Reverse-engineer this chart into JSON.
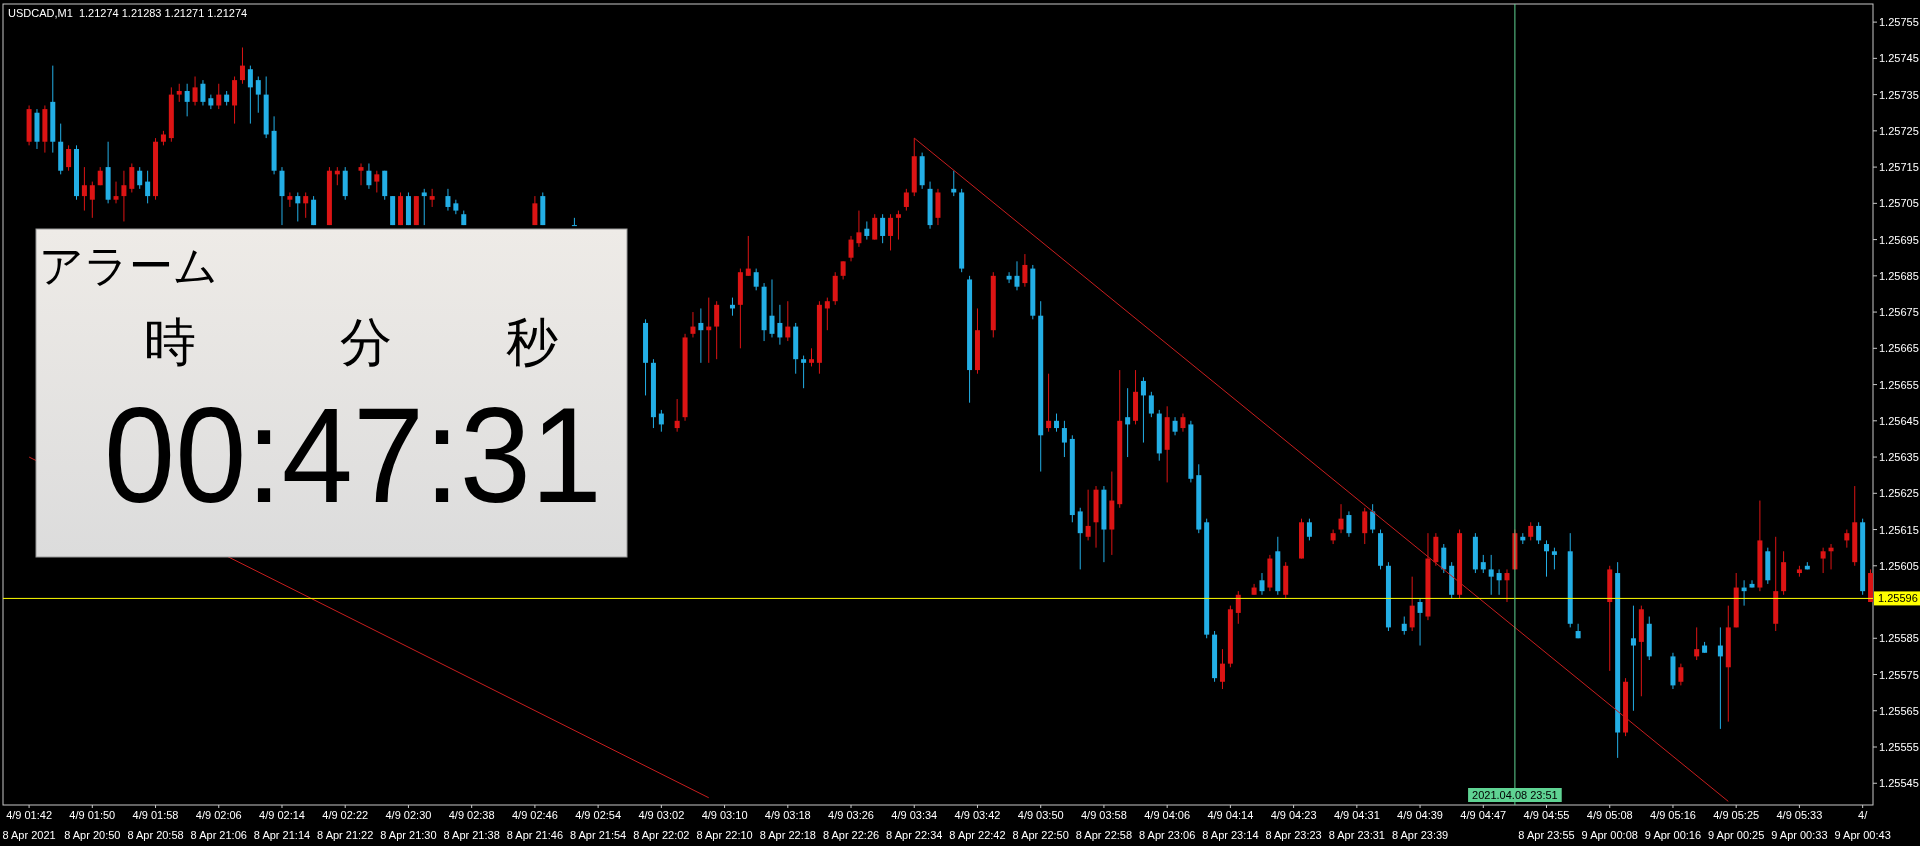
{
  "chart_data": [
    {
      "type": "candlestick",
      "title": "USDCAD,M1  1.21274 1.21283 1.21271 1.21274",
      "categories": [
        "4/9 01:42\n8 Apr 2021",
        null,
        null,
        null,
        null,
        null,
        null,
        null,
        "4/9 01:50\n8 Apr 20:50",
        null,
        null,
        null,
        null,
        null,
        null,
        null,
        "4/9 01:58\n8 Apr 20:58",
        null,
        null,
        null,
        null,
        null,
        null,
        null,
        "4/9 02:06\n8 Apr 21:06",
        null,
        null,
        null,
        null,
        null,
        null,
        null,
        "4/9 02:14\n8 Apr 21:14",
        null,
        null,
        null,
        null,
        null,
        null,
        null,
        "4/9 02:22\n8 Apr 21:22",
        null,
        null,
        null,
        null,
        null,
        null,
        null,
        "4/9 02:30\n8 Apr 21:30",
        null,
        null,
        null,
        null,
        null,
        null,
        null,
        "4/9 02:38\n8 Apr 21:38",
        null,
        null,
        null,
        null,
        null,
        null,
        null,
        "4/9 02:46\n8 Apr 21:46",
        null,
        null,
        null,
        null,
        null,
        null,
        null,
        "4/9 02:54\n8 Apr 21:54",
        null,
        null,
        null,
        null,
        null,
        null,
        null,
        "4/9 03:02\n8 Apr 22:02",
        null,
        null,
        null,
        null,
        null,
        null,
        null,
        "4/9 03:10\n8 Apr 22:10",
        null,
        null,
        null,
        null,
        null,
        null,
        null,
        "4/9 03:18\n8 Apr 22:18",
        null,
        null,
        null,
        null,
        null,
        null,
        null,
        "4/9 03:26\n8 Apr 22:26",
        null,
        null,
        null,
        null,
        null,
        null,
        null,
        "4/9 03:34\n8 Apr 22:34",
        null,
        null,
        null,
        null,
        null,
        null,
        null,
        "4/9 03:42\n8 Apr 22:42",
        null,
        null,
        null,
        null,
        null,
        null,
        null,
        "4/9 03:50\n8 Apr 22:50",
        null,
        null,
        null,
        null,
        null,
        null,
        null,
        "4/9 03:58\n8 Apr 22:58",
        null,
        null,
        null,
        null,
        null,
        null,
        null,
        "4/9 04:06\n8 Apr 23:06",
        null,
        null,
        null,
        null,
        null,
        null,
        null,
        "4/9 04:14\n8 Apr 23:14",
        null,
        null,
        null,
        null,
        null,
        null,
        null,
        "4/9 04:23\n8 Apr 23:23",
        null,
        null,
        null,
        null,
        null,
        null,
        null,
        "4/9 04:31\n8 Apr 23:31",
        null,
        null,
        null,
        null,
        null,
        null,
        null,
        "4/9 04:39\n8 Apr 23:39",
        null,
        null,
        null,
        null,
        null,
        null,
        null,
        "4/9 04:47",
        null,
        null,
        null,
        "2021.04.08 23:51",
        null,
        null,
        null,
        "4/9 04:55\n8 Apr 23:55",
        null,
        null,
        null,
        null,
        null,
        null,
        null,
        "4/9 05:08\n9 Apr 00:08",
        null,
        null,
        null,
        null,
        null,
        null,
        null,
        "4/9 05:16\n9 Apr 00:16",
        null,
        null,
        null,
        null,
        null,
        null,
        null,
        "4/9 05:25\n9 Apr 00:25",
        null,
        null,
        null,
        null,
        null,
        null,
        null,
        "4/9 05:33\n9 Apr 00:33",
        null,
        null,
        null,
        null,
        null,
        null,
        null,
        "4/\n9 Apr 00:43",
        null
      ],
      "ohlc": [
        [
          1.25722,
          1.25732,
          1.25721,
          1.25731
        ],
        [
          1.2573,
          1.25731,
          1.2572,
          1.25722
        ],
        [
          1.25722,
          1.25732,
          1.25719,
          1.25731
        ],
        [
          1.25733,
          1.25743,
          1.25719,
          1.25722
        ],
        [
          1.25722,
          1.25727,
          1.25713,
          1.25714
        ],
        [
          1.25715,
          1.25721,
          1.25714,
          1.2572
        ],
        [
          1.2572,
          1.25721,
          1.25706,
          1.25707
        ],
        [
          1.25707,
          1.25715,
          1.25703,
          1.2571
        ],
        [
          1.25706,
          1.25711,
          1.25701,
          1.2571
        ],
        [
          1.2571,
          1.25715,
          1.2571,
          1.25714
        ],
        [
          1.25715,
          1.25722,
          1.25705,
          1.25706
        ],
        [
          1.25706,
          1.25711,
          1.25705,
          1.25707
        ],
        [
          1.25707,
          1.25714,
          1.257,
          1.2571
        ],
        [
          1.25709,
          1.25716,
          1.25708,
          1.25715
        ],
        [
          1.25714,
          1.25715,
          1.25709,
          1.2571
        ],
        [
          1.25711,
          1.25714,
          1.25705,
          1.25707
        ],
        [
          1.25707,
          1.25723,
          1.25706,
          1.25722
        ],
        [
          1.25722,
          1.25725,
          1.25721,
          1.25724
        ],
        [
          1.25723,
          1.25737,
          1.25722,
          1.25735
        ],
        [
          1.25735,
          1.25738,
          1.25733,
          1.25736
        ],
        [
          1.25736,
          1.25738,
          1.25729,
          1.25733
        ],
        [
          1.25733,
          1.2574,
          1.25732,
          1.25737
        ],
        [
          1.25738,
          1.25739,
          1.25732,
          1.25733
        ],
        [
          1.25734,
          1.25735,
          1.25731,
          1.25732
        ],
        [
          1.25732,
          1.25738,
          1.25731,
          1.25735
        ],
        [
          1.25735,
          1.25736,
          1.25732,
          1.25733
        ],
        [
          1.25732,
          1.2574,
          1.25727,
          1.25739
        ],
        [
          1.25739,
          1.25748,
          1.25738,
          1.25743
        ],
        [
          1.25742,
          1.25743,
          1.25727,
          1.25737
        ],
        [
          1.25739,
          1.2574,
          1.2573,
          1.25735
        ],
        [
          1.25735,
          1.2574,
          1.25723,
          1.25724
        ],
        [
          1.25725,
          1.25729,
          1.25713,
          1.25714
        ],
        [
          1.25714,
          1.25715,
          1.25699,
          1.25707
        ],
        [
          1.25706,
          1.25708,
          1.25704,
          1.25707
        ],
        [
          1.25707,
          1.25708,
          1.257,
          1.25705
        ],
        [
          1.25705,
          1.25708,
          1.25701,
          1.25707
        ],
        [
          1.25706,
          1.25707,
          1.25699,
          1.25699
        ],
        null,
        [
          1.25699,
          1.25715,
          1.25699,
          1.25714
        ],
        [
          1.25713,
          1.25715,
          1.2571,
          1.25714
        ],
        [
          1.25714,
          1.25715,
          1.25706,
          1.25707
        ],
        null,
        [
          1.25714,
          1.25716,
          1.2571,
          1.25715
        ],
        [
          1.25714,
          1.25716,
          1.25709,
          1.2571
        ],
        [
          1.25711,
          1.25714,
          1.25708,
          1.25713
        ],
        [
          1.25714,
          1.25714,
          1.25706,
          1.25707
        ],
        [
          1.25707,
          1.25707,
          1.25699,
          1.25699
        ],
        [
          1.25699,
          1.25708,
          1.25699,
          1.25707
        ],
        [
          1.25707,
          1.25708,
          1.25699,
          1.25699
        ],
        [
          1.25699,
          1.25707,
          1.25699,
          1.25707
        ],
        [
          1.25708,
          1.25709,
          1.25699,
          1.25707
        ],
        [
          1.25706,
          1.25709,
          1.25704,
          1.25707
        ],
        null,
        [
          1.25707,
          1.25709,
          1.25703,
          1.25704
        ],
        [
          1.25705,
          1.25706,
          1.25702,
          1.25703
        ],
        [
          1.25702,
          1.25703,
          1.25699,
          1.25699
        ],
        null,
        null,
        null,
        null,
        null,
        null,
        null,
        null,
        [
          1.25699,
          1.25707,
          1.25699,
          1.25705
        ],
        [
          1.25707,
          1.25708,
          1.25699,
          1.25699
        ],
        null,
        null,
        null,
        [
          1.25699,
          1.25701,
          1.25699,
          1.25699
        ],
        null,
        null,
        null,
        null,
        null,
        null,
        null,
        null,
        [
          1.25672,
          1.25673,
          1.25652,
          1.25661
        ],
        [
          1.25661,
          1.25662,
          1.25643,
          1.25646
        ],
        [
          1.25647,
          1.25648,
          1.25642,
          1.25644
        ],
        null,
        [
          1.25643,
          1.25651,
          1.25642,
          1.25645
        ],
        [
          1.25646,
          1.25669,
          1.25645,
          1.25668
        ],
        [
          1.25669,
          1.25675,
          1.25668,
          1.25671
        ],
        [
          1.25672,
          1.25676,
          1.25661,
          1.2567
        ],
        [
          1.2567,
          1.25679,
          1.25661,
          1.25671
        ],
        [
          1.25671,
          1.25678,
          1.25662,
          1.25677
        ],
        null,
        [
          1.25677,
          1.25679,
          1.25674,
          1.25676
        ],
        [
          1.25677,
          1.25687,
          1.25665,
          1.25686
        ],
        [
          1.25685,
          1.25696,
          1.25685,
          1.25687
        ],
        [
          1.25686,
          1.25687,
          1.25681,
          1.25682
        ],
        [
          1.25682,
          1.25683,
          1.25667,
          1.2567
        ],
        [
          1.25674,
          1.25684,
          1.25668,
          1.25669
        ],
        [
          1.25672,
          1.25677,
          1.25666,
          1.25668
        ],
        [
          1.25668,
          1.25678,
          1.25667,
          1.25671
        ],
        [
          1.25671,
          1.25672,
          1.25658,
          1.25662
        ],
        [
          1.25662,
          1.25663,
          1.25654,
          1.25661
        ],
        [
          1.25661,
          1.25665,
          1.2566,
          1.25662
        ],
        [
          1.25661,
          1.25678,
          1.25658,
          1.25677
        ],
        [
          1.25676,
          1.25679,
          1.2567,
          1.25678
        ],
        [
          1.25678,
          1.25686,
          1.25677,
          1.25685
        ],
        [
          1.25685,
          1.25689,
          1.25684,
          1.25689
        ],
        [
          1.2569,
          1.25696,
          1.25689,
          1.25695
        ],
        [
          1.25694,
          1.25703,
          1.25693,
          1.25697
        ],
        [
          1.25698,
          1.257,
          1.25695,
          1.25696
        ],
        [
          1.25695,
          1.25702,
          1.25695,
          1.25701
        ],
        [
          1.25701,
          1.25702,
          1.25694,
          1.25696
        ],
        [
          1.25696,
          1.25702,
          1.25692,
          1.25701
        ],
        [
          1.25701,
          1.25703,
          1.25695,
          1.25702
        ],
        [
          1.25704,
          1.25709,
          1.25703,
          1.25708
        ],
        [
          1.25708,
          1.25723,
          1.25707,
          1.25718
        ],
        [
          1.25718,
          1.25719,
          1.25709,
          1.2571
        ],
        [
          1.25709,
          1.25711,
          1.25698,
          1.25699
        ],
        [
          1.25701,
          1.25709,
          1.25699,
          1.25708
        ],
        null,
        [
          1.25709,
          1.25714,
          1.25707,
          1.25708
        ],
        [
          1.25708,
          1.25709,
          1.25686,
          1.25687
        ],
        [
          1.25684,
          1.25685,
          1.2565,
          1.25659
        ],
        [
          1.25659,
          1.25676,
          1.25658,
          1.2567
        ],
        null,
        [
          1.2567,
          1.25686,
          1.25668,
          1.25685
        ],
        null,
        [
          1.25685,
          1.25686,
          1.25683,
          1.25684
        ],
        [
          1.25685,
          1.25689,
          1.25681,
          1.25682
        ],
        [
          1.25683,
          1.25691,
          1.25682,
          1.25688
        ],
        [
          1.25687,
          1.25688,
          1.25673,
          1.25674
        ],
        [
          1.25674,
          1.25678,
          1.25631,
          1.25641
        ],
        [
          1.25643,
          1.25658,
          1.25642,
          1.25645
        ],
        [
          1.25645,
          1.25647,
          1.25642,
          1.25643
        ],
        [
          1.25643,
          1.25645,
          1.25635,
          1.25639
        ],
        [
          1.2564,
          1.25641,
          1.25617,
          1.25619
        ],
        [
          1.2562,
          1.25621,
          1.25604,
          1.25614
        ],
        [
          1.25613,
          1.25626,
          1.25612,
          1.25616
        ],
        [
          1.25617,
          1.25627,
          1.2561,
          1.25626
        ],
        [
          1.25626,
          1.25627,
          1.25606,
          1.25615
        ],
        [
          1.25615,
          1.25631,
          1.25608,
          1.25623
        ],
        [
          1.25622,
          1.25659,
          1.25621,
          1.25645
        ],
        [
          1.25646,
          1.25654,
          1.25635,
          1.25644
        ],
        [
          1.25645,
          1.25659,
          1.25644,
          1.25653
        ],
        [
          1.25656,
          1.25657,
          1.25639,
          1.25652
        ],
        [
          1.25652,
          1.25653,
          1.25646,
          1.25647
        ],
        [
          1.25647,
          1.25648,
          1.25634,
          1.25636
        ],
        [
          1.25637,
          1.25649,
          1.25628,
          1.25646
        ],
        [
          1.25645,
          1.25646,
          1.25641,
          1.25642
        ],
        [
          1.25643,
          1.25647,
          1.25642,
          1.25646
        ],
        [
          1.25644,
          1.25645,
          1.25628,
          1.25629
        ],
        [
          1.2563,
          1.25633,
          1.25614,
          1.25615
        ],
        [
          1.25617,
          1.25618,
          1.25585,
          1.25586
        ],
        [
          1.25586,
          1.25587,
          1.25573,
          1.25574
        ],
        [
          1.25573,
          1.25582,
          1.25571,
          1.25578
        ],
        [
          1.25578,
          1.25594,
          1.25577,
          1.25593
        ],
        [
          1.25592,
          1.25598,
          1.25589,
          1.25597
        ],
        null,
        [
          1.25597,
          1.256,
          1.25597,
          1.25599
        ],
        [
          1.25601,
          1.25603,
          1.25597,
          1.25598
        ],
        [
          1.25599,
          1.25608,
          1.25598,
          1.25607
        ],
        [
          1.25609,
          1.25613,
          1.25597,
          1.25598
        ],
        [
          1.25597,
          1.25606,
          1.25596,
          1.25605
        ],
        null,
        [
          1.25607,
          1.25618,
          1.25607,
          1.25617
        ],
        [
          1.25617,
          1.25618,
          1.25612,
          1.25613
        ],
        null,
        null,
        [
          1.25612,
          1.25615,
          1.25611,
          1.25614
        ],
        [
          1.25615,
          1.25622,
          1.25614,
          1.25618
        ],
        [
          1.25619,
          1.2562,
          1.25613,
          1.25614
        ],
        null,
        [
          1.25614,
          1.25621,
          1.25611,
          1.2562
        ],
        [
          1.2562,
          1.25622,
          1.25614,
          1.25615
        ],
        [
          1.25614,
          1.25615,
          1.25604,
          1.25605
        ],
        [
          1.25605,
          1.25606,
          1.25587,
          1.25588
        ],
        null,
        [
          1.25589,
          1.25591,
          1.25586,
          1.25587
        ],
        [
          1.25588,
          1.25602,
          1.25587,
          1.25594
        ],
        [
          1.25595,
          1.25596,
          1.25583,
          1.25592
        ],
        [
          1.25591,
          1.25614,
          1.2559,
          1.25607
        ],
        [
          1.25606,
          1.25614,
          1.25605,
          1.25613
        ],
        [
          1.2561,
          1.25611,
          1.25603,
          1.25604
        ],
        [
          1.25605,
          1.25606,
          1.25596,
          1.25597
        ],
        [
          1.25597,
          1.25615,
          1.25596,
          1.25614
        ],
        null,
        [
          1.25613,
          1.25614,
          1.25603,
          1.25604
        ],
        [
          1.25606,
          1.25608,
          1.25603,
          1.25604
        ],
        [
          1.25604,
          1.25608,
          1.25597,
          1.25602
        ],
        [
          1.25603,
          1.25604,
          1.25597,
          1.25601
        ],
        [
          1.25601,
          1.25604,
          1.25595,
          1.25603
        ],
        [
          1.25604,
          1.25615,
          1.25604,
          1.25614
        ],
        [
          1.25613,
          1.25614,
          1.25611,
          1.25612
        ],
        [
          1.25613,
          1.25617,
          1.25612,
          1.25616
        ],
        [
          1.25616,
          1.25617,
          1.25611,
          1.25612
        ],
        [
          1.25611,
          1.25612,
          1.25602,
          1.25609
        ],
        [
          1.25609,
          1.2561,
          1.25604,
          1.25608
        ],
        null,
        [
          1.25609,
          1.25614,
          1.25588,
          1.25589
        ],
        [
          1.25587,
          1.25589,
          1.25585,
          1.25585
        ],
        null,
        null,
        null,
        [
          1.25595,
          1.25605,
          1.25576,
          1.25604
        ],
        [
          1.25603,
          1.25606,
          1.25552,
          1.25559
        ],
        [
          1.25559,
          1.25574,
          1.25558,
          1.25573
        ],
        [
          1.25585,
          1.25594,
          1.25565,
          1.25583
        ],
        [
          1.25584,
          1.25594,
          1.25569,
          1.25593
        ],
        [
          1.25589,
          1.25591,
          1.25579,
          1.2558
        ],
        null,
        null,
        [
          1.2558,
          1.25581,
          1.25571,
          1.25572
        ],
        [
          1.25573,
          1.25578,
          1.25572,
          1.25577
        ],
        null,
        [
          1.2558,
          1.25588,
          1.25579,
          1.25582
        ],
        [
          1.25583,
          1.25584,
          1.25581,
          1.25581
        ],
        null,
        [
          1.25583,
          1.25588,
          1.2556,
          1.2558
        ],
        [
          1.25577,
          1.25594,
          1.25562,
          1.25588
        ],
        [
          1.25588,
          1.25603,
          1.25588,
          1.25599
        ],
        [
          1.25599,
          1.25601,
          1.25594,
          1.25598
        ],
        [
          1.256,
          1.25601,
          1.25599,
          1.25599
        ],
        [
          1.25599,
          1.25623,
          1.25598,
          1.25612
        ],
        [
          1.25609,
          1.2561,
          1.256,
          1.25601
        ],
        [
          1.25589,
          1.25613,
          1.25587,
          1.25598
        ],
        [
          1.25598,
          1.25609,
          1.25597,
          1.25606
        ],
        null,
        [
          1.25603,
          1.25605,
          1.25602,
          1.25604
        ],
        [
          1.25605,
          1.25606,
          1.25604,
          1.25604
        ],
        null,
        [
          1.25607,
          1.2561,
          1.25603,
          1.25609
        ],
        [
          1.25609,
          1.25611,
          1.25604,
          1.2561
        ],
        null,
        [
          1.25612,
          1.25615,
          1.2561,
          1.25614
        ],
        [
          1.25606,
          1.25627,
          1.25605,
          1.25617
        ],
        [
          1.25617,
          1.25618,
          1.25597,
          1.25598
        ],
        [
          1.25595,
          1.25604,
          1.25595,
          1.25603
        ]
      ],
      "colors": [
        "#dc1414",
        "#23aee5",
        "#dc1414",
        "#23aee5",
        "#23aee5",
        "#dc1414",
        "#23aee5",
        "#dc1414",
        "#dc1414",
        "#dc1414",
        "#23aee5",
        "#dc1414",
        "#dc1414",
        "#dc1414",
        "#23aee5",
        "#23aee5",
        "#dc1414",
        "#dc1414",
        "#dc1414",
        "#dc1414",
        "#23aee5",
        "#dc1414",
        "#23aee5",
        "#23aee5",
        "#dc1414",
        "#23aee5",
        "#dc1414",
        "#dc1414",
        "#23aee5",
        "#23aee5",
        "#23aee5",
        "#23aee5",
        "#23aee5",
        "#dc1414",
        "#23aee5",
        "#dc1414",
        "#23aee5",
        null,
        "#dc1414",
        "#dc1414",
        "#23aee5",
        null,
        "#dc1414",
        "#23aee5",
        "#dc1414",
        "#23aee5",
        "#23aee5",
        "#dc1414",
        "#23aee5",
        "#dc1414",
        "#23aee5",
        "#dc1414",
        null,
        "#23aee5",
        "#23aee5",
        "#23aee5",
        null,
        null,
        null,
        null,
        null,
        null,
        null,
        null,
        "#dc1414",
        "#23aee5",
        null,
        null,
        null,
        "#23aee5",
        null,
        null,
        null,
        null,
        null,
        null,
        null,
        null,
        "#23aee5",
        "#23aee5",
        "#23aee5",
        null,
        "#dc1414",
        "#dc1414",
        "#dc1414",
        "#23aee5",
        "#dc1414",
        "#dc1414",
        null,
        "#23aee5",
        "#dc1414",
        "#dc1414",
        "#23aee5",
        "#23aee5",
        "#23aee5",
        "#23aee5",
        "#dc1414",
        "#23aee5",
        "#23aee5",
        "#dc1414",
        "#dc1414",
        "#dc1414",
        "#dc1414",
        "#dc1414",
        "#dc1414",
        "#dc1414",
        "#23aee5",
        "#dc1414",
        "#23aee5",
        "#dc1414",
        "#dc1414",
        "#dc1414",
        "#dc1414",
        "#23aee5",
        "#23aee5",
        "#dc1414",
        null,
        "#23aee5",
        "#23aee5",
        "#23aee5",
        "#dc1414",
        null,
        "#dc1414",
        null,
        "#23aee5",
        "#23aee5",
        "#dc1414",
        "#23aee5",
        "#23aee5",
        "#dc1414",
        "#23aee5",
        "#23aee5",
        "#23aee5",
        "#23aee5",
        "#dc1414",
        "#dc1414",
        "#23aee5",
        "#dc1414",
        "#dc1414",
        "#23aee5",
        "#dc1414",
        "#23aee5",
        "#23aee5",
        "#23aee5",
        "#dc1414",
        "#23aee5",
        "#dc1414",
        "#23aee5",
        "#23aee5",
        "#23aee5",
        "#23aee5",
        "#dc1414",
        "#dc1414",
        "#dc1414",
        null,
        "#dc1414",
        "#23aee5",
        "#dc1414",
        "#23aee5",
        "#dc1414",
        null,
        "#dc1414",
        "#23aee5",
        null,
        null,
        "#dc1414",
        "#dc1414",
        "#23aee5",
        null,
        "#dc1414",
        "#23aee5",
        "#23aee5",
        "#23aee5",
        null,
        "#23aee5",
        "#dc1414",
        "#23aee5",
        "#dc1414",
        "#dc1414",
        "#23aee5",
        "#23aee5",
        "#dc1414",
        null,
        "#23aee5",
        "#23aee5",
        "#23aee5",
        "#23aee5",
        "#dc1414",
        "#dc1414",
        "#23aee5",
        "#dc1414",
        "#23aee5",
        "#23aee5",
        "#23aee5",
        null,
        "#23aee5",
        "#23aee5",
        null,
        null,
        null,
        "#dc1414",
        "#23aee5",
        "#dc1414",
        "#23aee5",
        "#dc1414",
        "#23aee5",
        null,
        null,
        "#23aee5",
        "#dc1414",
        null,
        "#dc1414",
        "#23aee5",
        null,
        "#23aee5",
        "#dc1414",
        "#dc1414",
        "#23aee5",
        "#23aee5",
        "#dc1414",
        "#23aee5",
        "#dc1414",
        "#dc1414",
        null,
        "#dc1414",
        "#23aee5",
        null,
        "#dc1414",
        "#dc1414",
        null,
        "#dc1414",
        "#dc1414",
        "#23aee5",
        "#dc1414"
      ],
      "series": [
        {
          "type": "line",
          "color": "#c81e1e",
          "values": [
            null,
            null,
            null,
            null,
            null,
            null,
            null,
            null,
            null,
            null,
            null,
            null,
            null,
            null,
            null,
            null,
            null,
            null,
            null,
            null,
            null,
            null,
            null,
            null,
            null,
            null,
            null,
            null,
            null,
            null,
            null,
            null,
            null,
            null,
            null,
            null,
            null,
            null,
            null,
            null,
            null,
            null,
            null,
            null,
            null,
            null,
            null,
            null,
            null,
            null,
            null,
            null,
            null,
            null,
            null,
            null,
            null,
            null,
            null,
            null,
            null,
            null,
            null,
            null,
            null,
            null,
            null,
            null,
            null,
            null,
            null,
            null,
            null,
            null,
            null,
            null,
            null,
            null,
            null,
            null,
            null,
            null,
            null,
            null,
            null,
            null,
            null,
            null,
            null,
            null,
            null,
            null,
            null,
            null,
            null,
            null,
            null,
            null,
            null,
            null,
            null,
            null,
            null,
            null,
            null,
            null,
            null,
            null,
            null,
            null,
            null,
            null,
            1.25723,
            null,
            null,
            null,
            null,
            null,
            null,
            null,
            null,
            null,
            null,
            null,
            null,
            null,
            null,
            null,
            null,
            null,
            null,
            null,
            null,
            null,
            null,
            null,
            null,
            null,
            null,
            null,
            null,
            null,
            null,
            null,
            null,
            null,
            null,
            null,
            null,
            null,
            null,
            null,
            null,
            null,
            null,
            null,
            null,
            null,
            null,
            null,
            null,
            null,
            null,
            null,
            null,
            null,
            null,
            null,
            null,
            null,
            null,
            null,
            null,
            null,
            null,
            null,
            null,
            null,
            null,
            null,
            null,
            null,
            null,
            null,
            null,
            null,
            null,
            null,
            null,
            null,
            null,
            null,
            null,
            null,
            null,
            null,
            null,
            null,
            null,
            null,
            null,
            null,
            null,
            null,
            null,
            null,
            null,
            null,
            null,
            null,
            null,
            null,
            null,
            null,
            null,
            1.2554,
            null,
            null,
            null,
            null,
            null,
            null,
            null,
            null,
            null,
            null,
            null,
            null,
            null,
            null,
            null,
            null,
            null,
            null
          ]
        },
        {
          "type": "line",
          "color": "#c81e1e",
          "values": [
            1.25635,
            null,
            null,
            null,
            null,
            null,
            null,
            null,
            null,
            null,
            null,
            null,
            null,
            null,
            null,
            null,
            null,
            null,
            null,
            null,
            null,
            null,
            null,
            null,
            null,
            null,
            null,
            null,
            null,
            null,
            null,
            null,
            null,
            null,
            null,
            null,
            null,
            null,
            null,
            null,
            null,
            null,
            null,
            null,
            null,
            null,
            null,
            null,
            null,
            null,
            null,
            null,
            null,
            null,
            null,
            null,
            null,
            null,
            null,
            null,
            null,
            null,
            null,
            null,
            null,
            null,
            null,
            null,
            null,
            null,
            null,
            null,
            null,
            null,
            null,
            null,
            null,
            null,
            null,
            null,
            null,
            null,
            null,
            null,
            null,
            null,
            1.25541,
            null,
            null,
            null,
            null,
            null,
            null,
            null,
            null,
            null,
            null,
            null,
            null,
            null,
            null,
            null,
            null,
            null,
            null,
            null,
            null,
            null,
            null,
            null,
            null,
            null,
            null,
            null,
            null,
            null,
            null,
            null,
            null,
            null,
            null,
            null,
            null,
            null,
            null,
            null,
            null,
            null,
            null,
            null,
            null,
            null,
            null,
            null,
            null,
            null,
            null,
            null,
            null,
            null,
            null,
            null,
            null,
            null,
            null,
            null,
            null,
            null,
            null,
            null,
            null,
            null,
            null,
            null,
            null,
            null,
            null,
            null,
            null,
            null,
            null,
            null,
            null,
            null,
            null,
            null,
            null,
            null,
            null,
            null,
            null,
            null,
            null,
            null,
            null,
            null,
            null,
            null,
            null,
            null,
            null,
            null,
            null,
            null,
            null,
            null,
            null,
            null,
            null,
            null,
            null,
            null,
            null,
            null,
            null,
            null,
            null,
            null,
            null,
            null,
            null,
            null,
            null,
            null,
            null,
            null,
            null,
            null,
            null,
            null,
            null,
            null,
            null,
            null,
            null,
            null,
            null,
            null,
            null,
            null,
            null,
            null,
            null,
            null,
            null,
            null,
            null,
            null,
            null,
            null,
            null,
            null,
            null,
            null
          ]
        }
      ],
      "ylim": [
        1.25539,
        1.2576
      ],
      "yticks": [
        1.25755,
        1.25745,
        1.25735,
        1.25725,
        1.25715,
        1.25705,
        1.25695,
        1.25685,
        1.25675,
        1.25665,
        1.25655,
        1.25645,
        1.25635,
        1.25625,
        1.25615,
        1.25605,
        1.25585,
        1.25575,
        1.25565,
        1.25555,
        1.25545
      ],
      "ref_lines": [
        {
          "axis": "y",
          "value": 1.25596,
          "label": "1.25596",
          "color": "#ffff00"
        },
        {
          "axis": "x",
          "value": "2021.04.08 23:51",
          "color": "#5fd393"
        }
      ]
    },
    {
      "type": "other",
      "title": "アラーム",
      "annotations": [
        "時",
        "分",
        "秒",
        "00:47:31"
      ]
    }
  ]
}
